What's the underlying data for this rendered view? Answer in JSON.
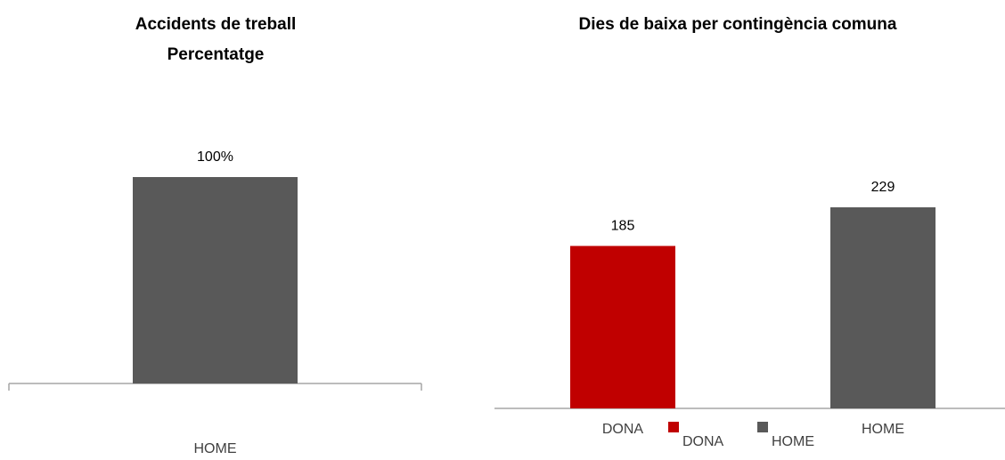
{
  "chart_data": [
    {
      "type": "bar",
      "title": "Accidents de treball",
      "subtitle": "Percentatge",
      "categories": [
        "HOME"
      ],
      "values": [
        100
      ],
      "value_labels": [
        "100%"
      ],
      "color": "#595959"
    },
    {
      "type": "bar",
      "title": "Dies de baixa per contingència comuna",
      "categories": [
        "DONA",
        "HOME"
      ],
      "series": [
        {
          "name": "DONA",
          "color": "#c00000"
        },
        {
          "name": "HOME",
          "color": "#595959"
        }
      ],
      "values": [
        185,
        229
      ],
      "legend": "bottom"
    }
  ]
}
